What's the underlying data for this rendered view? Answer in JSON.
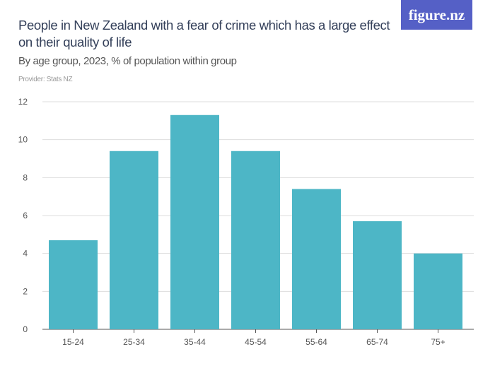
{
  "header": {
    "title": "People in New Zealand with a fear of crime which has a large effect on their quality of life",
    "subtitle": "By age group, 2023, % of population within group",
    "provider": "Provider: Stats NZ",
    "logo": "figure.nz"
  },
  "colors": {
    "bar": "#4db6c6",
    "logo_bg": "#5560c6",
    "title": "#34405a"
  },
  "chart_data": {
    "type": "bar",
    "categories": [
      "15-24",
      "25-34",
      "35-44",
      "45-54",
      "55-64",
      "65-74",
      "75+"
    ],
    "values": [
      4.7,
      9.4,
      11.3,
      9.4,
      7.4,
      5.7,
      4.0
    ],
    "title": "People in New Zealand with a fear of crime which has a large effect on their quality of life",
    "subtitle": "By age group, 2023, % of population within group",
    "xlabel": "",
    "ylabel": "",
    "ylim": [
      0,
      12
    ],
    "yticks": [
      0,
      2,
      4,
      6,
      8,
      10,
      12
    ],
    "grid": true
  }
}
